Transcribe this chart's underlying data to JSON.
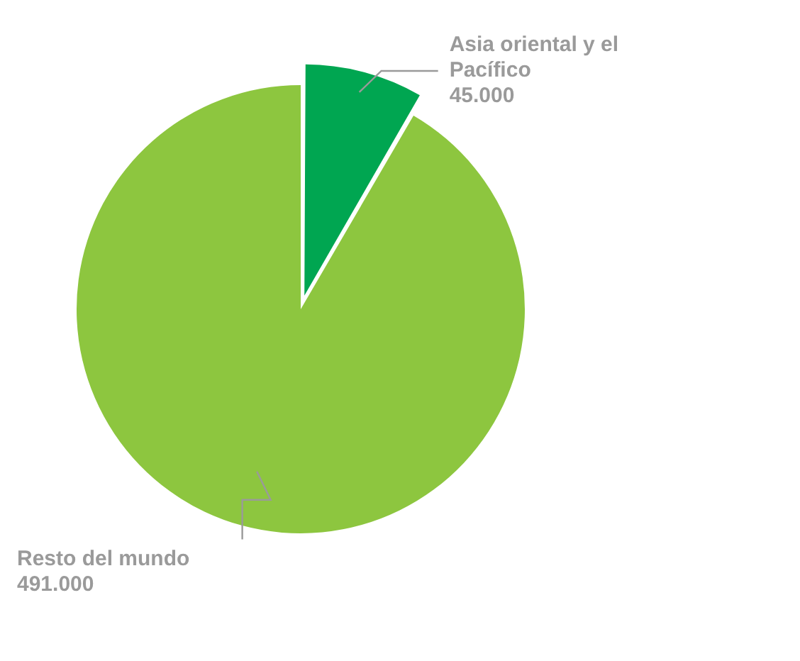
{
  "chart_data": {
    "type": "pie",
    "categories": [
      "Asia oriental y el Pacífico",
      "Resto del mundo"
    ],
    "values": [
      45000,
      491000
    ],
    "value_labels": [
      "45.000",
      "491.000"
    ],
    "colors": [
      "#00a651",
      "#8dc63f"
    ],
    "legend": false
  }
}
